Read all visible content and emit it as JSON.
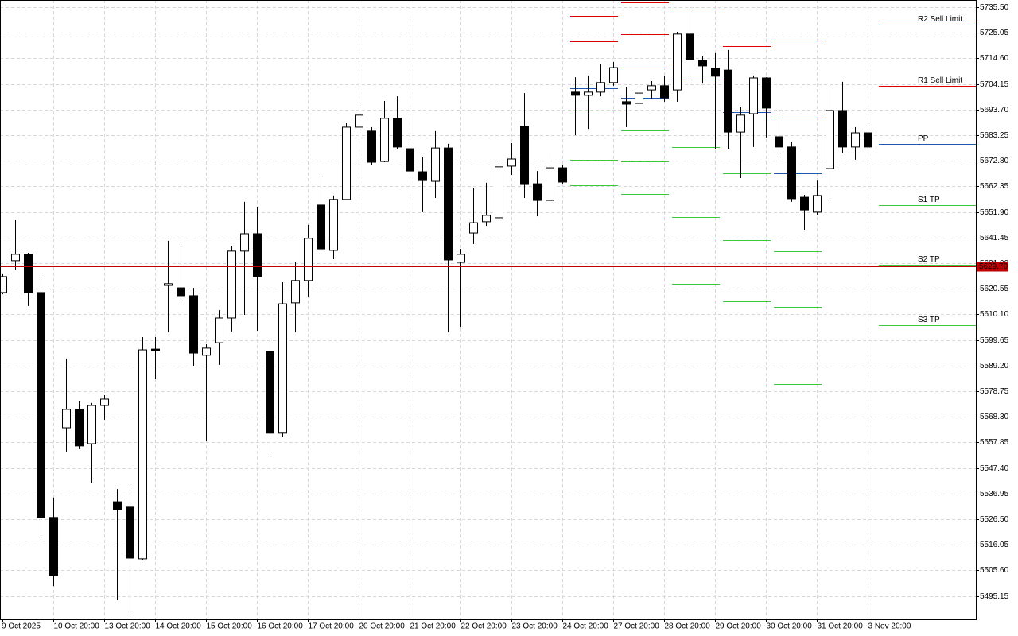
{
  "chart_data": {
    "type": "candlestick",
    "categories": [
      "9 Oct 2025",
      null,
      null,
      null,
      "10 Oct 20:00",
      null,
      null,
      null,
      "13 Oct 20:00",
      null,
      null,
      null,
      "14 Oct 20:00",
      null,
      null,
      null,
      "15 Oct 20:00",
      null,
      null,
      null,
      "16 Oct 20:00",
      null,
      null,
      null,
      "17 Oct 20:00",
      null,
      null,
      null,
      "20 Oct 20:00",
      null,
      null,
      null,
      "21 Oct 20:00",
      null,
      null,
      null,
      "22 Oct 20:00",
      null,
      null,
      null,
      "23 Oct 20:00",
      null,
      null,
      null,
      "24 Oct 20:00",
      null,
      null,
      null,
      "27 Oct 20:00",
      null,
      null,
      null,
      "28 Oct 20:00",
      null,
      null,
      null,
      "29 Oct 20:00",
      null,
      null,
      null,
      "30 Oct 20:00",
      null,
      null,
      null,
      "31 Oct 20:00",
      null,
      null,
      null,
      "3 Nov 20:00"
    ],
    "open": [
      5619.0,
      5632.0,
      5634.6,
      5619.0,
      5527.2,
      5563.8,
      5571.3,
      5557.3,
      5572.9,
      5533.6,
      5531.4,
      5510.3,
      5595.9,
      5621.9,
      5620.9,
      5617.7,
      5593.4,
      5598.5,
      5608.6,
      5635.9,
      5643.0,
      5595.0,
      5561.6,
      5614.8,
      5623.9,
      5654.7,
      5636.2,
      5657.0,
      5686.5,
      5684.9,
      5672.5,
      5690.1,
      5677.7,
      5668.3,
      5664.4,
      5678.0,
      5631.3,
      5643.3,
      5647.9,
      5649.5,
      5670.6,
      5686.8,
      5663.4,
      5656.6,
      5669.9,
      5700.8,
      5699.5,
      5700.8,
      5704.7,
      5696.9,
      5696.2,
      5701.7,
      5703.4,
      5701.7,
      5724.5,
      5713.7,
      5710.5,
      5709.8,
      5684.5,
      5692.0,
      5706.6,
      5682.6,
      5678.4,
      5657.9,
      5651.8,
      5669.6,
      5693.3,
      5678.4,
      5684.2
    ],
    "high": [
      5626.5,
      5648.5,
      5635.2,
      5624.8,
      5535.3,
      5592.1,
      5574.5,
      5573.9,
      5577.1,
      5538.8,
      5539.2,
      5600.8,
      5600.8,
      5640.1,
      5639.4,
      5620.9,
      5597.9,
      5611.8,
      5637.8,
      5656.0,
      5653.7,
      5600.5,
      5623.2,
      5631.3,
      5646.6,
      5668.0,
      5658.6,
      5688.1,
      5695.6,
      5686.5,
      5697.2,
      5699.1,
      5680.0,
      5674.2,
      5684.9,
      5679.7,
      5636.8,
      5661.5,
      5663.8,
      5673.2,
      5680.0,
      5700.4,
      5668.6,
      5676.1,
      5670.9,
      5706.9,
      5707.6,
      5712.4,
      5713.1,
      5702.7,
      5703.4,
      5705.3,
      5707.3,
      5725.4,
      5733.9,
      5715.7,
      5716.7,
      5718.0,
      5694.6,
      5707.6,
      5706.9,
      5693.6,
      5680.6,
      5658.9,
      5664.7,
      5703.4,
      5705.0,
      5686.5,
      5688.1
    ],
    "low": [
      5618.3,
      5628.1,
      5613.5,
      5518.1,
      5499.2,
      5554.1,
      5555.1,
      5541.4,
      5567.1,
      5493.4,
      5487.9,
      5509.6,
      5583.6,
      5602.8,
      5614.1,
      5589.1,
      5558.3,
      5589.5,
      5603.1,
      5609.9,
      5603.4,
      5553.4,
      5559.9,
      5602.8,
      5617.4,
      5635.2,
      5632.6,
      5657.0,
      5685.5,
      5670.9,
      5672.2,
      5677.4,
      5668.6,
      5651.8,
      5657.6,
      5602.8,
      5605.0,
      5638.8,
      5646.2,
      5648.2,
      5667.0,
      5657.6,
      5650.1,
      5656.3,
      5663.4,
      5683.2,
      5685.8,
      5699.1,
      5703.4,
      5686.5,
      5695.2,
      5698.2,
      5696.9,
      5696.9,
      5706.6,
      5704.3,
      5677.7,
      5677.7,
      5665.7,
      5678.4,
      5682.3,
      5673.8,
      5656.0,
      5644.6,
      5650.8,
      5655.7,
      5675.8,
      5673.2,
      5678.0
    ],
    "close": [
      5625.5,
      5634.6,
      5619.0,
      5527.2,
      5503.5,
      5571.3,
      5556.4,
      5572.9,
      5575.5,
      5530.4,
      5510.6,
      5595.6,
      5595.3,
      5622.6,
      5617.7,
      5594.3,
      5596.3,
      5608.6,
      5635.9,
      5643.0,
      5625.5,
      5561.6,
      5614.4,
      5623.9,
      5641.1,
      5636.8,
      5657.0,
      5686.5,
      5691.4,
      5672.2,
      5690.1,
      5678.4,
      5668.6,
      5664.7,
      5678.0,
      5632.3,
      5634.6,
      5647.5,
      5650.5,
      5670.3,
      5673.5,
      5663.1,
      5656.6,
      5669.9,
      5664.1,
      5699.5,
      5700.8,
      5704.7,
      5710.8,
      5695.9,
      5700.4,
      5703.4,
      5698.5,
      5724.5,
      5714.1,
      5711.5,
      5707.3,
      5684.5,
      5691.4,
      5706.6,
      5694.3,
      5678.4,
      5657.3,
      5652.7,
      5658.6,
      5693.3,
      5678.4,
      5684.2,
      5678.4
    ],
    "up_color": "#ffffff",
    "down_color": "#000000",
    "ylim": [
      5485.6,
      5738.4
    ],
    "yticks": [
      {
        "value": 5735.5,
        "label": "5735.50"
      },
      5725.05,
      {
        "value": 5714.6,
        "label": "5714.60"
      },
      5704.15,
      {
        "value": 5693.7,
        "label": "5693.70"
      },
      5683.25,
      {
        "value": 5672.8,
        "label": "5672.80"
      },
      5662.35,
      {
        "value": 5651.9,
        "label": "5651.90"
      },
      5641.45,
      {
        "value": 5631.0,
        "label": "5631.00"
      },
      5620.55,
      {
        "value": 5610.1,
        "label": "5610.10"
      },
      5599.65,
      {
        "value": 5589.2,
        "label": "5589.20"
      },
      5578.75,
      {
        "value": 5568.3,
        "label": "5568.30"
      },
      5557.85,
      {
        "value": 5547.4,
        "label": "5547.40"
      },
      5536.95,
      {
        "value": 5526.5,
        "label": "5526.50"
      },
      5516.05,
      {
        "value": 5505.6,
        "label": "5505.60"
      },
      5495.15
    ],
    "grid": true,
    "current_price": {
      "value": 5629.7,
      "label": "5629.70",
      "color": "#c00000"
    },
    "resistance_color": "#e00000",
    "pivot_color": "#1e5ab4",
    "support_color": "#3cc83c",
    "pivot_history": [
      {
        "resistance": [
          5731.9,
          5721.5
        ],
        "pivot": 5702.4,
        "support": [
          5692.0,
          5673.2,
          5662.8
        ]
      },
      {
        "resistance": [
          5737.4,
          5724.4,
          5710.8
        ],
        "pivot": 5698.5,
        "support": [
          5685.2,
          5672.5,
          5659.2
        ]
      },
      {
        "resistance": [
          5734.5
        ],
        "pivot": 5706.0,
        "support": [
          5678.4,
          5649.8,
          5622.6
        ]
      },
      {
        "resistance": [
          5719.6
        ],
        "pivot": 5692.6,
        "support": [
          5667.7,
          5640.4,
          5615.4
        ]
      },
      {
        "resistance": [
          5721.9,
          5690.4
        ],
        "pivot": 5667.7,
        "support": [
          5635.9,
          5613.1,
          5581.7
        ]
      }
    ],
    "levels": [
      {
        "name": "R2 Sell Limit",
        "color": "#e00000",
        "value": 5728.3
      },
      {
        "name": "R1 Sell Limit",
        "color": "#e00000",
        "value": 5703.4
      },
      {
        "name": "PP",
        "color": "#1e5ab4",
        "value": 5679.7
      },
      {
        "name": "S1 TP",
        "color": "#3cc83c",
        "value": 5654.7
      },
      {
        "name": "S2 TP",
        "color": "#3cc83c",
        "value": 5630.3
      },
      {
        "name": "S3 TP",
        "color": "#3cc83c",
        "value": 5605.7
      }
    ]
  }
}
